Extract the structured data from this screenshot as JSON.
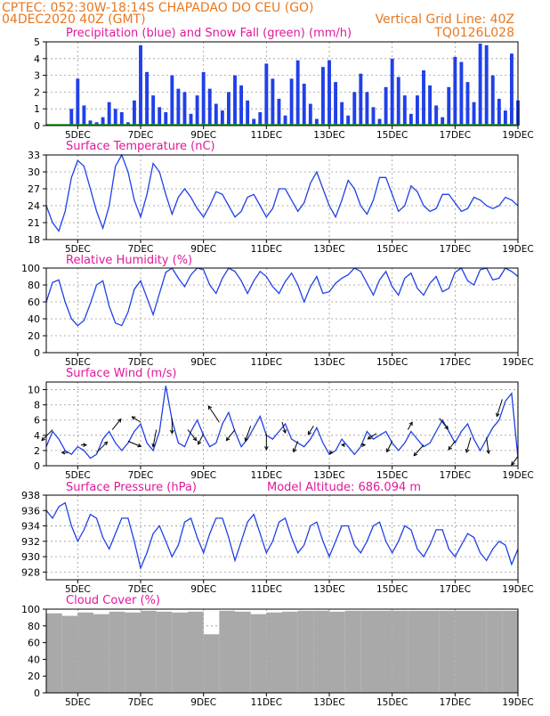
{
  "header": {
    "line1": "CPTEC:   052:30W-18:14S   CHAPADAO DO CEU (GO)",
    "line2_left": "04DEC2020 40Z (GMT)",
    "line2_right": "Vertical Grid Line: 40Z",
    "line3_right": "TQ0126L028"
  },
  "colors": {
    "series": "#2040e8",
    "snow": "#20a020",
    "cloud": "#a9a9a9",
    "title": "#e0189a",
    "header": "#e87820",
    "arrow": "#000000"
  },
  "x_ticks": [
    "5DEC",
    "7DEC",
    "9DEC",
    "11DEC",
    "13DEC",
    "15DEC",
    "17DEC",
    "19DEC"
  ],
  "chart_data": [
    {
      "type": "bar",
      "title": "Precipitation (blue) and Snow Fall (green) (mm/h)",
      "ylim": [
        0,
        5
      ],
      "yticks": [
        "0",
        "1",
        "2",
        "3",
        "4",
        "5"
      ],
      "x_days": [
        4.8,
        5.0,
        5.2,
        5.4,
        5.6,
        5.8,
        6.0,
        6.2,
        6.4,
        6.6,
        6.8,
        7.0,
        7.2,
        7.4,
        7.6,
        7.8,
        8.0,
        8.2,
        8.4,
        8.6,
        8.8,
        9.0,
        9.2,
        9.4,
        9.6,
        9.8,
        10.0,
        10.2,
        10.4,
        10.6,
        10.8,
        11.0,
        11.2,
        11.4,
        11.6,
        11.8,
        12.0,
        12.2,
        12.4,
        12.6,
        12.8,
        13.0,
        13.2,
        13.4,
        13.6,
        13.8,
        14.0,
        14.2,
        14.4,
        14.6,
        14.8,
        15.0,
        15.2,
        15.4,
        15.6,
        15.8,
        16.0,
        16.2,
        16.4,
        16.6,
        16.8,
        17.0,
        17.2,
        17.4,
        17.6,
        17.8,
        18.0,
        18.2,
        18.4,
        18.6,
        18.8,
        19.0
      ],
      "series": [
        {
          "name": "Precipitation",
          "values": [
            1.0,
            2.8,
            1.2,
            0.3,
            0.2,
            0.5,
            1.4,
            1.0,
            0.8,
            0.2,
            1.5,
            4.8,
            3.2,
            1.8,
            1.1,
            0.8,
            3.0,
            2.2,
            2.0,
            0.7,
            1.8,
            3.2,
            2.2,
            1.3,
            0.9,
            2.0,
            3.0,
            2.4,
            1.5,
            0.4,
            0.8,
            3.7,
            2.8,
            1.6,
            0.6,
            2.8,
            3.9,
            2.5,
            1.3,
            0.4,
            3.5,
            3.9,
            2.6,
            1.4,
            0.6,
            2.0,
            3.1,
            2.0,
            1.1,
            0.4,
            2.3,
            4.0,
            2.9,
            1.8,
            0.7,
            1.8,
            3.3,
            2.4,
            1.2,
            0.5,
            2.3,
            4.1,
            3.8,
            2.6,
            1.4,
            4.9,
            4.8,
            3.0,
            1.6,
            0.9,
            4.3,
            1.5
          ]
        },
        {
          "name": "Snow Fall",
          "values": [
            0,
            0,
            0,
            0,
            0,
            0,
            0,
            0,
            0,
            0,
            0,
            0,
            0,
            0,
            0,
            0,
            0,
            0,
            0,
            0,
            0,
            0,
            0,
            0,
            0,
            0,
            0,
            0,
            0,
            0,
            0,
            0,
            0,
            0,
            0,
            0,
            0,
            0,
            0,
            0,
            0,
            0,
            0,
            0,
            0,
            0,
            0,
            0,
            0,
            0,
            0,
            0,
            0,
            0,
            0,
            0,
            0,
            0,
            0,
            0,
            0,
            0,
            0,
            0,
            0,
            0,
            0,
            0,
            0,
            0,
            0,
            0
          ]
        }
      ]
    },
    {
      "type": "line",
      "title": "Surface Temperature (nC)",
      "ylim": [
        18,
        33
      ],
      "yticks": [
        "18",
        "21",
        "24",
        "27",
        "30",
        "33"
      ],
      "x": [
        4.0,
        4.2,
        4.4,
        4.6,
        4.8,
        5.0,
        5.2,
        5.4,
        5.6,
        5.8,
        6.0,
        6.2,
        6.4,
        6.6,
        6.8,
        7.0,
        7.2,
        7.4,
        7.6,
        7.8,
        8.0,
        8.2,
        8.4,
        8.6,
        8.8,
        9.0,
        9.2,
        9.4,
        9.6,
        9.8,
        10.0,
        10.2,
        10.4,
        10.6,
        10.8,
        11.0,
        11.2,
        11.4,
        11.6,
        11.8,
        12.0,
        12.2,
        12.4,
        12.6,
        12.8,
        13.0,
        13.2,
        13.4,
        13.6,
        13.8,
        14.0,
        14.2,
        14.4,
        14.6,
        14.8,
        15.0,
        15.2,
        15.4,
        15.6,
        15.8,
        16.0,
        16.2,
        16.4,
        16.6,
        16.8,
        17.0,
        17.2,
        17.4,
        17.6,
        17.8,
        18.0,
        18.2,
        18.4,
        18.6,
        18.8,
        19.0
      ],
      "series": [
        {
          "name": "Surface Temperature",
          "values": [
            24,
            21,
            19.5,
            23,
            29,
            32,
            31,
            27,
            23,
            20,
            24,
            31,
            33,
            30,
            25,
            22,
            26,
            31.5,
            30,
            26,
            22.5,
            25.5,
            27,
            25.5,
            23.5,
            22,
            24,
            26.5,
            26,
            24,
            22,
            23,
            25.5,
            26,
            24,
            22,
            23.5,
            27,
            27,
            25,
            23,
            24.5,
            28,
            30,
            27,
            24,
            22,
            25,
            28.5,
            27,
            24,
            22.5,
            25,
            29,
            29,
            26,
            23,
            24,
            27.5,
            26.5,
            24,
            23,
            23.5,
            26,
            26,
            24.5,
            23,
            23.5,
            25.5,
            25,
            24,
            23.5,
            24,
            25.5,
            25,
            24
          ]
        }
      ]
    },
    {
      "type": "line",
      "title": "Relative Humidity (%)",
      "ylim": [
        0,
        100
      ],
      "yticks": [
        "0",
        "20",
        "40",
        "60",
        "80",
        "100"
      ],
      "x": [
        4.0,
        4.2,
        4.4,
        4.6,
        4.8,
        5.0,
        5.2,
        5.4,
        5.6,
        5.8,
        6.0,
        6.2,
        6.4,
        6.6,
        6.8,
        7.0,
        7.2,
        7.4,
        7.6,
        7.8,
        8.0,
        8.2,
        8.4,
        8.6,
        8.8,
        9.0,
        9.2,
        9.4,
        9.6,
        9.8,
        10.0,
        10.2,
        10.4,
        10.6,
        10.8,
        11.0,
        11.2,
        11.4,
        11.6,
        11.8,
        12.0,
        12.2,
        12.4,
        12.6,
        12.8,
        13.0,
        13.2,
        13.4,
        13.6,
        13.8,
        14.0,
        14.2,
        14.4,
        14.6,
        14.8,
        15.0,
        15.2,
        15.4,
        15.6,
        15.8,
        16.0,
        16.2,
        16.4,
        16.6,
        16.8,
        17.0,
        17.2,
        17.4,
        17.6,
        17.8,
        18.0,
        18.2,
        18.4,
        18.6,
        18.8,
        19.0
      ],
      "series": [
        {
          "name": "Relative Humidity",
          "values": [
            60,
            83,
            86,
            60,
            40,
            32,
            38,
            58,
            80,
            85,
            55,
            35,
            32,
            48,
            75,
            85,
            65,
            45,
            70,
            95,
            100,
            88,
            78,
            92,
            100,
            98,
            80,
            70,
            88,
            100,
            96,
            85,
            70,
            85,
            96,
            90,
            78,
            70,
            84,
            94,
            80,
            60,
            78,
            90,
            70,
            72,
            82,
            88,
            92,
            100,
            96,
            82,
            68,
            86,
            96,
            78,
            68,
            88,
            94,
            76,
            68,
            82,
            90,
            72,
            76,
            95,
            100,
            85,
            80,
            98,
            100,
            86,
            88,
            100,
            96,
            90
          ]
        }
      ]
    },
    {
      "type": "line",
      "title": "Surface Wind (m/s)",
      "ylim": [
        0,
        11
      ],
      "yticks": [
        "0",
        "2",
        "4",
        "6",
        "8",
        "10"
      ],
      "x": [
        4.0,
        4.2,
        4.4,
        4.6,
        4.8,
        5.0,
        5.2,
        5.4,
        5.6,
        5.8,
        6.0,
        6.2,
        6.4,
        6.6,
        6.8,
        7.0,
        7.2,
        7.4,
        7.6,
        7.8,
        8.0,
        8.2,
        8.4,
        8.6,
        8.8,
        9.0,
        9.2,
        9.4,
        9.6,
        9.8,
        10.0,
        10.2,
        10.4,
        10.6,
        10.8,
        11.0,
        11.2,
        11.4,
        11.6,
        11.8,
        12.0,
        12.2,
        12.4,
        12.6,
        12.8,
        13.0,
        13.2,
        13.4,
        13.6,
        13.8,
        14.0,
        14.2,
        14.4,
        14.6,
        14.8,
        15.0,
        15.2,
        15.4,
        15.6,
        15.8,
        16.0,
        16.2,
        16.4,
        16.6,
        16.8,
        17.0,
        17.2,
        17.4,
        17.6,
        17.8,
        18.0,
        18.2,
        18.4,
        18.6,
        18.8,
        19.0
      ],
      "series": [
        {
          "name": "Surface Wind",
          "values": [
            2.5,
            4.5,
            3.5,
            2.0,
            1.5,
            2.5,
            2.0,
            1.0,
            1.5,
            3.5,
            4.5,
            3.0,
            2.0,
            3.0,
            4.5,
            5.5,
            3.0,
            2.0,
            4.5,
            10.5,
            6.0,
            3.0,
            2.5,
            4.5,
            6.0,
            4.0,
            2.5,
            3.0,
            5.5,
            7.0,
            4.5,
            2.5,
            3.5,
            5.0,
            6.5,
            4.0,
            3.5,
            4.5,
            5.5,
            3.5,
            3.0,
            2.5,
            3.5,
            5.0,
            3.0,
            1.5,
            2.0,
            3.5,
            2.5,
            1.5,
            2.5,
            4.5,
            3.5,
            4.0,
            4.5,
            3.0,
            2.0,
            3.0,
            4.5,
            3.5,
            2.5,
            3.0,
            4.5,
            6.0,
            4.5,
            3.0,
            4.5,
            5.5,
            3.5,
            2.0,
            3.5,
            5.0,
            6.0,
            8.5,
            9.5,
            1.0
          ]
        }
      ],
      "arrows_x": [
        4.2,
        4.7,
        5.1,
        5.6,
        6.1,
        6.6,
        7.0,
        7.5,
        8.0,
        8.5,
        9.0,
        9.5,
        10.0,
        10.5,
        11.0,
        11.5,
        12.0,
        12.5,
        13.0,
        13.5,
        14.0,
        14.5,
        15.0,
        15.5,
        16.0,
        16.5,
        17.0,
        17.5,
        18.0,
        18.5,
        19.0
      ],
      "arrows_u": [
        -1.0,
        -0.6,
        0.5,
        1.0,
        0.8,
        1.2,
        -0.8,
        -0.3,
        0.0,
        0.8,
        -0.5,
        -1.0,
        -0.8,
        -0.5,
        0.0,
        0.3,
        -0.4,
        -0.5,
        0.3,
        -0.3,
        0.4,
        -0.8,
        -0.5,
        0.4,
        -0.9,
        0.8,
        -0.6,
        -0.4,
        0.2,
        -0.5,
        -0.6
      ],
      "arrows_v": [
        -1.0,
        0.0,
        0.0,
        1.0,
        1.0,
        -0.5,
        0.5,
        -1.6,
        -1.4,
        -1.0,
        -1.0,
        1.5,
        -1.0,
        -1.4,
        -1.5,
        -1.0,
        -1.0,
        -0.8,
        0.0,
        0.0,
        0.0,
        -0.5,
        -1.0,
        0.7,
        -1.0,
        -1.0,
        -0.8,
        -1.4,
        -1.5,
        -1.6,
        -0.8
      ]
    },
    {
      "type": "line",
      "title": "Surface Pressure (hPa)",
      "annotation": "Model Altitude: 686.094 m",
      "ylim": [
        927,
        938
      ],
      "yticks": [
        "928",
        "930",
        "932",
        "934",
        "936",
        "938"
      ],
      "x": [
        4.0,
        4.2,
        4.4,
        4.6,
        4.8,
        5.0,
        5.2,
        5.4,
        5.6,
        5.8,
        6.0,
        6.2,
        6.4,
        6.6,
        6.8,
        7.0,
        7.2,
        7.4,
        7.6,
        7.8,
        8.0,
        8.2,
        8.4,
        8.6,
        8.8,
        9.0,
        9.2,
        9.4,
        9.6,
        9.8,
        10.0,
        10.2,
        10.4,
        10.6,
        10.8,
        11.0,
        11.2,
        11.4,
        11.6,
        11.8,
        12.0,
        12.2,
        12.4,
        12.6,
        12.8,
        13.0,
        13.2,
        13.4,
        13.6,
        13.8,
        14.0,
        14.2,
        14.4,
        14.6,
        14.8,
        15.0,
        15.2,
        15.4,
        15.6,
        15.8,
        16.0,
        16.2,
        16.4,
        16.6,
        16.8,
        17.0,
        17.2,
        17.4,
        17.6,
        17.8,
        18.0,
        18.2,
        18.4,
        18.6,
        18.8,
        19.0
      ],
      "series": [
        {
          "name": "Surface Pressure",
          "values": [
            936,
            935,
            936.5,
            937,
            934,
            932,
            933.5,
            935.5,
            935,
            932.5,
            931,
            933,
            935,
            935,
            932,
            928.5,
            930.5,
            933,
            934,
            932,
            930,
            931.5,
            934.5,
            935,
            932.5,
            930.5,
            933,
            935,
            935,
            932.5,
            929.5,
            932,
            934.5,
            935.5,
            933,
            930.5,
            932,
            934.5,
            935,
            932.5,
            930.5,
            931.5,
            934,
            934.5,
            932,
            930,
            932,
            934,
            934,
            931.5,
            930.5,
            932,
            934,
            934.5,
            932,
            930.5,
            932,
            934,
            933.5,
            931,
            930,
            931.5,
            933.5,
            933.5,
            931,
            930,
            931.5,
            933,
            932.5,
            930.5,
            929.5,
            931,
            932,
            931.5,
            929,
            931
          ]
        }
      ]
    },
    {
      "type": "bar",
      "title": "Cloud Cover (%)",
      "ylim": [
        0,
        100
      ],
      "yticks": [
        "0",
        "20",
        "40",
        "60",
        "80",
        "100"
      ],
      "x_days": [
        4.0,
        4.5,
        5.0,
        5.5,
        6.0,
        6.5,
        7.0,
        7.5,
        8.0,
        8.5,
        9.0,
        9.5,
        10.0,
        10.5,
        11.0,
        11.5,
        12.0,
        12.5,
        13.0,
        13.5,
        14.0,
        14.5,
        15.0,
        15.5,
        16.0,
        16.5,
        17.0,
        17.5,
        18.0,
        18.5
      ],
      "series": [
        {
          "name": "Cloud Cover",
          "values": [
            95,
            92,
            96,
            94,
            97,
            96,
            98,
            97,
            96,
            97,
            70,
            98,
            97,
            94,
            96,
            97,
            98,
            98,
            97,
            98,
            98,
            98,
            98,
            98,
            98,
            98,
            98,
            98,
            98,
            98
          ]
        }
      ]
    }
  ]
}
